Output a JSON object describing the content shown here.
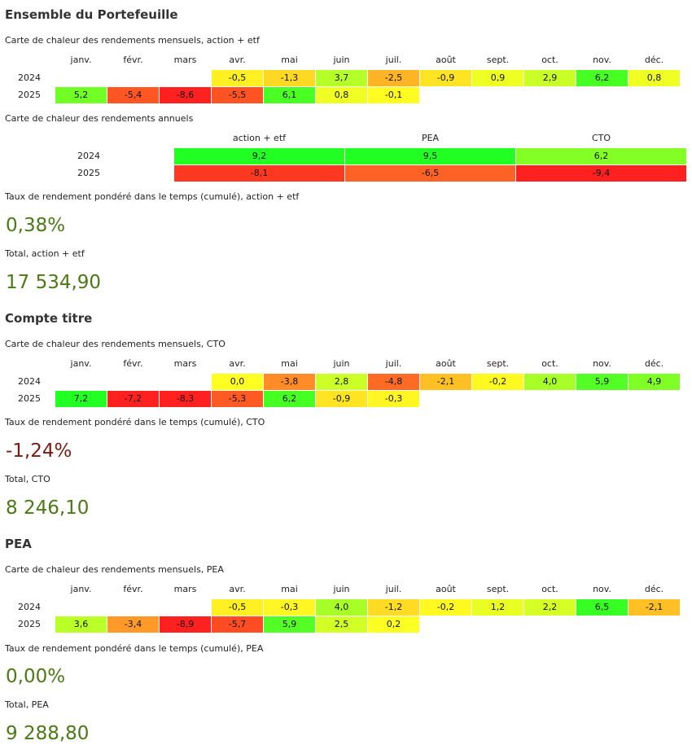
{
  "colors": {
    "kpi_positive": "#4a7a14",
    "kpi_negative": "#7a1a14"
  },
  "sections": [
    {
      "title": "Ensemble du Portefeuille"
    },
    {
      "title": "Compte titre"
    },
    {
      "title": "PEA"
    }
  ],
  "captions": {
    "portfolio_monthly": "Carte de chaleur des rendements mensuels, action + etf",
    "portfolio_annual": "Carte de chaleur des rendements annuels",
    "portfolio_twr": "Taux de rendement pondéré dans le temps (cumulé), action + etf",
    "portfolio_total": "Total, action + etf",
    "cto_monthly": "Carte de chaleur des rendements mensuels, CTO",
    "cto_twr": "Taux de rendement pondéré dans le temps (cumulé), CTO",
    "cto_total": "Total, CTO",
    "pea_monthly": "Carte de chaleur des rendements mensuels, PEA",
    "pea_twr": "Taux de rendement pondéré dans le temps (cumulé), PEA",
    "pea_total": "Total, PEA"
  },
  "kpis": {
    "portfolio_twr": "0,38%",
    "portfolio_total": "17 534,90",
    "cto_twr": "-1,24%",
    "cto_total": "8 246,10",
    "pea_twr": "0,00%",
    "pea_total": "9 288,80"
  },
  "chart_data": [
    {
      "type": "heatmap",
      "id": "portfolio_monthly",
      "title": "Carte de chaleur des rendements mensuels, action + etf",
      "columns": [
        "janv.",
        "févr.",
        "mars",
        "avr.",
        "mai",
        "juin",
        "juil.",
        "août",
        "sept.",
        "oct.",
        "nov.",
        "déc."
      ],
      "rows": [
        {
          "year": "2024",
          "values": [
            null,
            null,
            null,
            -0.5,
            -1.3,
            3.7,
            -2.5,
            -0.9,
            0.9,
            2.9,
            6.2,
            0.8
          ]
        },
        {
          "year": "2025",
          "values": [
            5.2,
            -5.4,
            -8.6,
            -5.5,
            6.1,
            0.8,
            -0.1,
            null,
            null,
            null,
            null,
            null
          ]
        }
      ]
    },
    {
      "type": "heatmap",
      "id": "portfolio_annual",
      "title": "Carte de chaleur des rendements annuels",
      "columns": [
        "action + etf",
        "PEA",
        "CTO"
      ],
      "rows": [
        {
          "year": "2024",
          "values": [
            9.2,
            9.5,
            6.2
          ]
        },
        {
          "year": "2025",
          "values": [
            -8.1,
            -6.5,
            -9.4
          ]
        }
      ]
    },
    {
      "type": "heatmap",
      "id": "cto_monthly",
      "title": "Carte de chaleur des rendements mensuels, CTO",
      "columns": [
        "janv.",
        "févr.",
        "mars",
        "avr.",
        "mai",
        "juin",
        "juil.",
        "août",
        "sept.",
        "oct.",
        "nov.",
        "déc."
      ],
      "rows": [
        {
          "year": "2024",
          "values": [
            null,
            null,
            null,
            0.0,
            -3.8,
            2.8,
            -4.8,
            -2.1,
            -0.2,
            4.0,
            5.9,
            4.9
          ]
        },
        {
          "year": "2025",
          "values": [
            7.2,
            -7.2,
            -8.3,
            -5.3,
            6.2,
            -0.9,
            -0.3,
            null,
            null,
            null,
            null,
            null
          ]
        }
      ]
    },
    {
      "type": "heatmap",
      "id": "pea_monthly",
      "title": "Carte de chaleur des rendements mensuels, PEA",
      "columns": [
        "janv.",
        "févr.",
        "mars",
        "avr.",
        "mai",
        "juin",
        "juil.",
        "août",
        "sept.",
        "oct.",
        "nov.",
        "déc."
      ],
      "rows": [
        {
          "year": "2024",
          "values": [
            null,
            null,
            null,
            -0.5,
            -0.3,
            4.0,
            -1.2,
            -0.2,
            1.2,
            2.2,
            6.5,
            -2.1
          ]
        },
        {
          "year": "2025",
          "values": [
            3.6,
            -3.4,
            -8.9,
            -5.7,
            5.9,
            2.5,
            0.2,
            null,
            null,
            null,
            null,
            null
          ]
        }
      ]
    }
  ]
}
